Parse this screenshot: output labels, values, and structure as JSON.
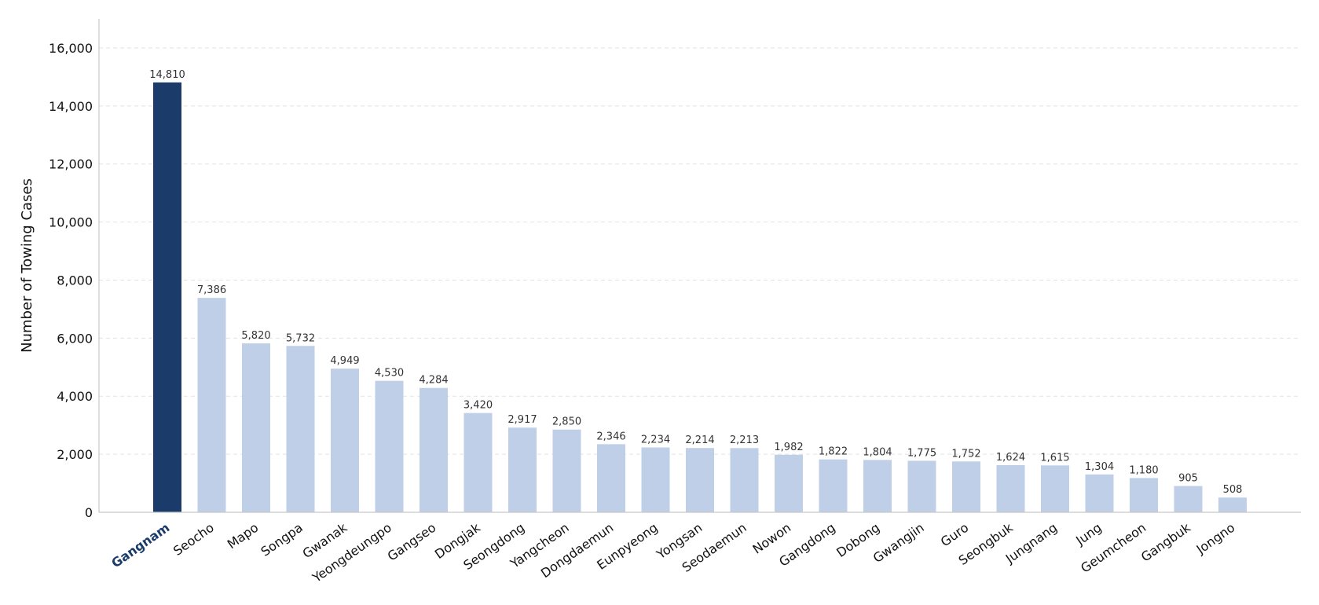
{
  "chart_data": {
    "type": "bar",
    "title": "",
    "xlabel": "",
    "ylabel": "Number of Towing Cases",
    "ylim": [
      0,
      17000
    ],
    "yticks": [
      0,
      2000,
      4000,
      6000,
      8000,
      10000,
      12000,
      14000,
      16000
    ],
    "ytick_labels": [
      "0",
      "2,000",
      "4,000",
      "6,000",
      "8,000",
      "10,000",
      "12,000",
      "14,000",
      "16,000"
    ],
    "grid": "horizontal dashed",
    "categories": [
      "Gangnam",
      "Seocho",
      "Mapo",
      "Songpa",
      "Gwanak",
      "Yeongdeungpo",
      "Gangseo",
      "Dongjak",
      "Seongdong",
      "Yangcheon",
      "Dongdaemun",
      "Eunpyeong",
      "Yongsan",
      "Seodaemun",
      "Nowon",
      "Gangdong",
      "Dobong",
      "Gwangjin",
      "Guro",
      "Seongbuk",
      "Jungnang",
      "Jung",
      "Geumcheon",
      "Gangbuk",
      "Jongno"
    ],
    "values": [
      14810,
      7386,
      5820,
      5732,
      4949,
      4530,
      4284,
      3420,
      2917,
      2850,
      2346,
      2234,
      2214,
      2213,
      1982,
      1822,
      1804,
      1775,
      1752,
      1624,
      1615,
      1304,
      1180,
      905,
      508
    ],
    "value_labels": [
      "14,810",
      "7,386",
      "5,820",
      "5,732",
      "4,949",
      "4,530",
      "4,284",
      "3,420",
      "2,917",
      "2,850",
      "2,346",
      "2,234",
      "2,214",
      "2,213",
      "1,982",
      "1,822",
      "1,804",
      "1,775",
      "1,752",
      "1,624",
      "1,615",
      "1,304",
      "1,180",
      "905",
      "508"
    ],
    "highlight_index": 0,
    "colors": {
      "highlight": "#1b3c6b",
      "default": "#bfcfe8",
      "highlight_label": "#1b3c6b"
    }
  }
}
